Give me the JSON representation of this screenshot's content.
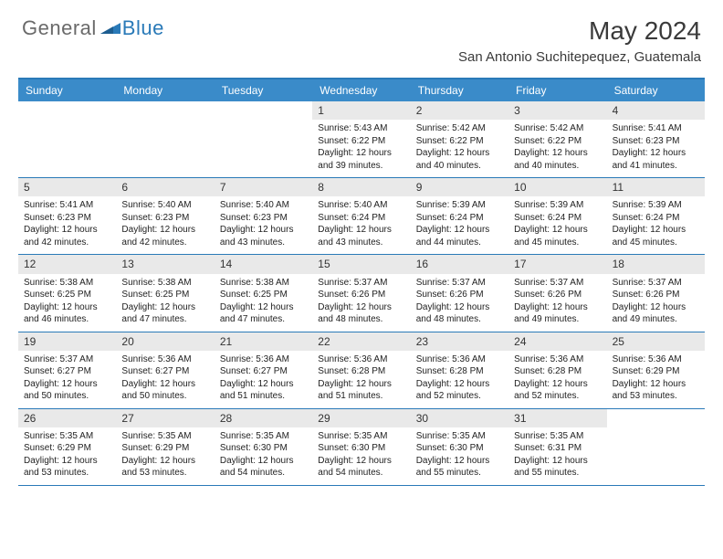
{
  "brand": {
    "word1": "General",
    "word2": "Blue"
  },
  "title": {
    "month": "May 2024",
    "location": "San Antonio Suchitepequez, Guatemala"
  },
  "colors": {
    "header_bg": "#3a8bc9",
    "border": "#2a7ab8",
    "daynum_bg": "#e9e9e9",
    "text": "#222222",
    "logo_gray": "#6a6a6a",
    "logo_blue": "#2a7ab8"
  },
  "dow": [
    "Sunday",
    "Monday",
    "Tuesday",
    "Wednesday",
    "Thursday",
    "Friday",
    "Saturday"
  ],
  "weeks": [
    [
      {
        "n": "",
        "sr": "",
        "ss": "",
        "dl": ""
      },
      {
        "n": "",
        "sr": "",
        "ss": "",
        "dl": ""
      },
      {
        "n": "",
        "sr": "",
        "ss": "",
        "dl": ""
      },
      {
        "n": "1",
        "sr": "Sunrise: 5:43 AM",
        "ss": "Sunset: 6:22 PM",
        "dl": "Daylight: 12 hours and 39 minutes."
      },
      {
        "n": "2",
        "sr": "Sunrise: 5:42 AM",
        "ss": "Sunset: 6:22 PM",
        "dl": "Daylight: 12 hours and 40 minutes."
      },
      {
        "n": "3",
        "sr": "Sunrise: 5:42 AM",
        "ss": "Sunset: 6:22 PM",
        "dl": "Daylight: 12 hours and 40 minutes."
      },
      {
        "n": "4",
        "sr": "Sunrise: 5:41 AM",
        "ss": "Sunset: 6:23 PM",
        "dl": "Daylight: 12 hours and 41 minutes."
      }
    ],
    [
      {
        "n": "5",
        "sr": "Sunrise: 5:41 AM",
        "ss": "Sunset: 6:23 PM",
        "dl": "Daylight: 12 hours and 42 minutes."
      },
      {
        "n": "6",
        "sr": "Sunrise: 5:40 AM",
        "ss": "Sunset: 6:23 PM",
        "dl": "Daylight: 12 hours and 42 minutes."
      },
      {
        "n": "7",
        "sr": "Sunrise: 5:40 AM",
        "ss": "Sunset: 6:23 PM",
        "dl": "Daylight: 12 hours and 43 minutes."
      },
      {
        "n": "8",
        "sr": "Sunrise: 5:40 AM",
        "ss": "Sunset: 6:24 PM",
        "dl": "Daylight: 12 hours and 43 minutes."
      },
      {
        "n": "9",
        "sr": "Sunrise: 5:39 AM",
        "ss": "Sunset: 6:24 PM",
        "dl": "Daylight: 12 hours and 44 minutes."
      },
      {
        "n": "10",
        "sr": "Sunrise: 5:39 AM",
        "ss": "Sunset: 6:24 PM",
        "dl": "Daylight: 12 hours and 45 minutes."
      },
      {
        "n": "11",
        "sr": "Sunrise: 5:39 AM",
        "ss": "Sunset: 6:24 PM",
        "dl": "Daylight: 12 hours and 45 minutes."
      }
    ],
    [
      {
        "n": "12",
        "sr": "Sunrise: 5:38 AM",
        "ss": "Sunset: 6:25 PM",
        "dl": "Daylight: 12 hours and 46 minutes."
      },
      {
        "n": "13",
        "sr": "Sunrise: 5:38 AM",
        "ss": "Sunset: 6:25 PM",
        "dl": "Daylight: 12 hours and 47 minutes."
      },
      {
        "n": "14",
        "sr": "Sunrise: 5:38 AM",
        "ss": "Sunset: 6:25 PM",
        "dl": "Daylight: 12 hours and 47 minutes."
      },
      {
        "n": "15",
        "sr": "Sunrise: 5:37 AM",
        "ss": "Sunset: 6:26 PM",
        "dl": "Daylight: 12 hours and 48 minutes."
      },
      {
        "n": "16",
        "sr": "Sunrise: 5:37 AM",
        "ss": "Sunset: 6:26 PM",
        "dl": "Daylight: 12 hours and 48 minutes."
      },
      {
        "n": "17",
        "sr": "Sunrise: 5:37 AM",
        "ss": "Sunset: 6:26 PM",
        "dl": "Daylight: 12 hours and 49 minutes."
      },
      {
        "n": "18",
        "sr": "Sunrise: 5:37 AM",
        "ss": "Sunset: 6:26 PM",
        "dl": "Daylight: 12 hours and 49 minutes."
      }
    ],
    [
      {
        "n": "19",
        "sr": "Sunrise: 5:37 AM",
        "ss": "Sunset: 6:27 PM",
        "dl": "Daylight: 12 hours and 50 minutes."
      },
      {
        "n": "20",
        "sr": "Sunrise: 5:36 AM",
        "ss": "Sunset: 6:27 PM",
        "dl": "Daylight: 12 hours and 50 minutes."
      },
      {
        "n": "21",
        "sr": "Sunrise: 5:36 AM",
        "ss": "Sunset: 6:27 PM",
        "dl": "Daylight: 12 hours and 51 minutes."
      },
      {
        "n": "22",
        "sr": "Sunrise: 5:36 AM",
        "ss": "Sunset: 6:28 PM",
        "dl": "Daylight: 12 hours and 51 minutes."
      },
      {
        "n": "23",
        "sr": "Sunrise: 5:36 AM",
        "ss": "Sunset: 6:28 PM",
        "dl": "Daylight: 12 hours and 52 minutes."
      },
      {
        "n": "24",
        "sr": "Sunrise: 5:36 AM",
        "ss": "Sunset: 6:28 PM",
        "dl": "Daylight: 12 hours and 52 minutes."
      },
      {
        "n": "25",
        "sr": "Sunrise: 5:36 AM",
        "ss": "Sunset: 6:29 PM",
        "dl": "Daylight: 12 hours and 53 minutes."
      }
    ],
    [
      {
        "n": "26",
        "sr": "Sunrise: 5:35 AM",
        "ss": "Sunset: 6:29 PM",
        "dl": "Daylight: 12 hours and 53 minutes."
      },
      {
        "n": "27",
        "sr": "Sunrise: 5:35 AM",
        "ss": "Sunset: 6:29 PM",
        "dl": "Daylight: 12 hours and 53 minutes."
      },
      {
        "n": "28",
        "sr": "Sunrise: 5:35 AM",
        "ss": "Sunset: 6:30 PM",
        "dl": "Daylight: 12 hours and 54 minutes."
      },
      {
        "n": "29",
        "sr": "Sunrise: 5:35 AM",
        "ss": "Sunset: 6:30 PM",
        "dl": "Daylight: 12 hours and 54 minutes."
      },
      {
        "n": "30",
        "sr": "Sunrise: 5:35 AM",
        "ss": "Sunset: 6:30 PM",
        "dl": "Daylight: 12 hours and 55 minutes."
      },
      {
        "n": "31",
        "sr": "Sunrise: 5:35 AM",
        "ss": "Sunset: 6:31 PM",
        "dl": "Daylight: 12 hours and 55 minutes."
      },
      {
        "n": "",
        "sr": "",
        "ss": "",
        "dl": ""
      }
    ]
  ]
}
